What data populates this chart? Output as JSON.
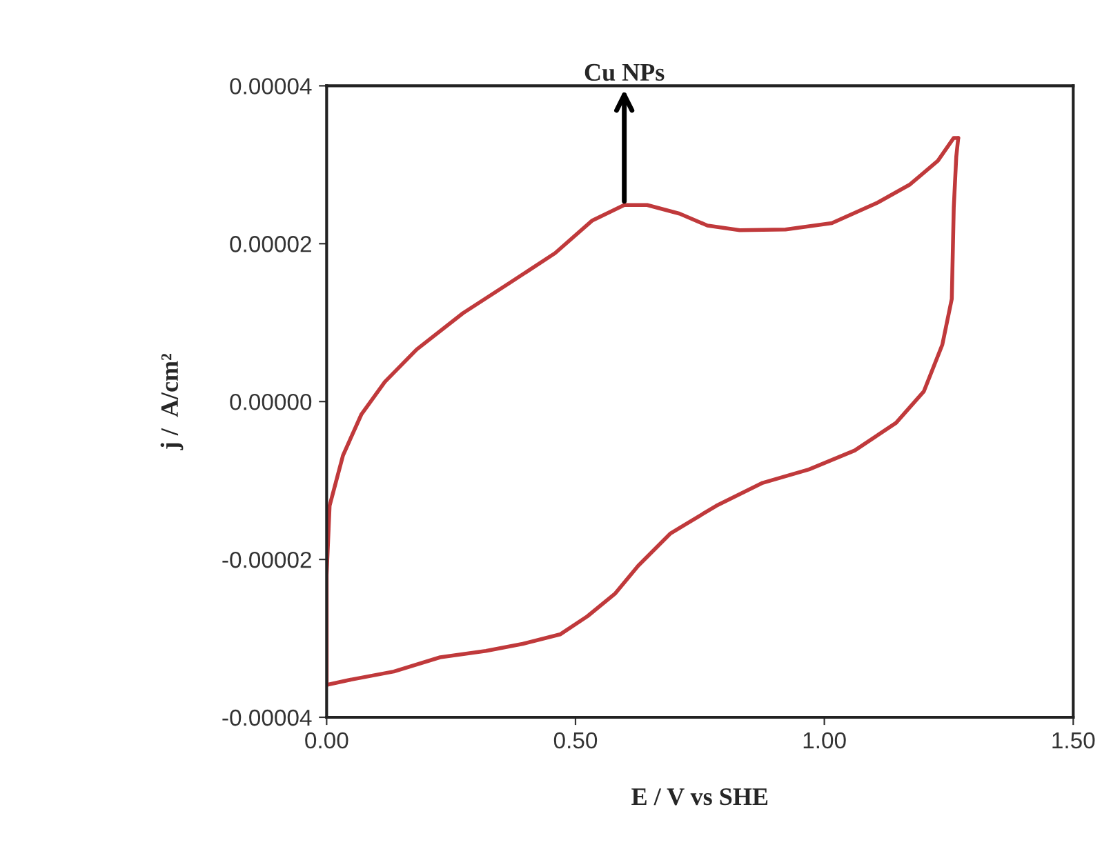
{
  "chart_data": {
    "type": "line",
    "xlabel": "E / V vs SHE",
    "ylabel": "j /  A/cm²",
    "annotations": [
      {
        "text": "Cu NPs",
        "x": 0.598,
        "y": 2.49e-05
      }
    ],
    "xlim": [
      0,
      1.5
    ],
    "xticks": [
      {
        "value": 0,
        "label": "0.00"
      },
      {
        "value": 0.5,
        "label": "0.50"
      },
      {
        "value": 1.0,
        "label": "1.00"
      },
      {
        "value": 1.5,
        "label": "1.50"
      }
    ],
    "ylim": [
      -4e-05,
      4e-05
    ],
    "yticks": [
      {
        "value": -4e-05,
        "label": "-0.00004"
      },
      {
        "value": -2e-05,
        "label": "-0.00002"
      },
      {
        "value": 0,
        "label": "0.00000"
      },
      {
        "value": 2e-05,
        "label": "0.00002"
      },
      {
        "value": 4e-05,
        "label": "0.00004"
      }
    ],
    "grid": false,
    "marker": "none",
    "line_style": "solid",
    "series": [
      {
        "color": "#c0393b",
        "x": [
          0.0,
          0.0,
          0.0,
          0.006,
          0.033,
          0.07,
          0.117,
          0.181,
          0.274,
          0.367,
          0.459,
          0.533,
          0.598,
          0.644,
          0.709,
          0.765,
          0.83,
          0.922,
          1.015,
          1.107,
          1.172,
          1.228,
          1.26,
          1.269
        ],
        "values": [
          -3.59e-05,
          -3e-05,
          -2.2e-05,
          -1.32e-05,
          -6.8e-06,
          -1.6e-06,
          2.5e-06,
          6.6e-06,
          1.12e-05,
          1.5e-05,
          1.88e-05,
          2.29e-05,
          2.49e-05,
          2.49e-05,
          2.38e-05,
          2.23e-05,
          2.17e-05,
          2.18e-05,
          2.26e-05,
          2.52e-05,
          2.75e-05,
          3.05e-05,
          3.34e-05,
          3.34e-05
        ]
      },
      {
        "color": "#c0393b",
        "x": [
          0.0,
          0.043,
          0.135,
          0.228,
          0.32,
          0.394,
          0.469,
          0.524,
          0.58,
          0.626,
          0.691,
          0.783,
          0.876,
          0.969,
          1.061,
          1.144,
          1.2,
          1.237,
          1.256,
          1.26,
          1.265,
          1.269
        ],
        "values": [
          -3.59e-05,
          -3.53e-05,
          -3.42e-05,
          -3.24e-05,
          -3.16e-05,
          -3.07e-05,
          -2.95e-05,
          -2.72e-05,
          -2.43e-05,
          -2.08e-05,
          -1.67e-05,
          -1.32e-05,
          -1.03e-05,
          -8.6e-06,
          -6.2e-06,
          -2.7e-06,
          1.3e-06,
          7.2e-06,
          1.3e-05,
          2.46e-05,
          3.1e-05,
          3.34e-05
        ]
      }
    ]
  }
}
